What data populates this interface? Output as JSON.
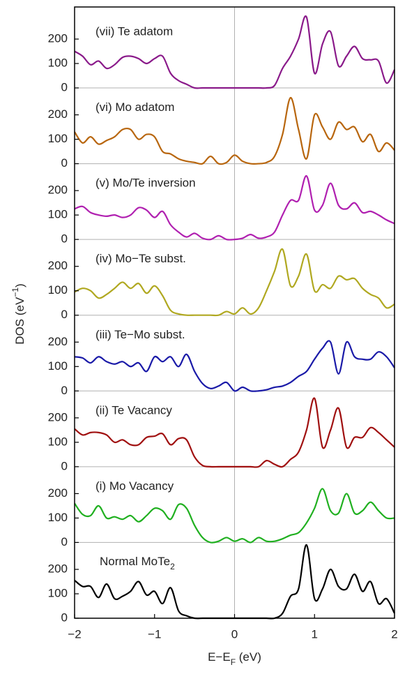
{
  "chart_data": [
    {
      "type": "line",
      "title": "(vii) Te adatom",
      "color": "#8a1a8a",
      "xlim": [
        -2,
        2
      ],
      "ylim": [
        0,
        310
      ],
      "yticks": [
        0,
        100,
        200
      ],
      "ylabel": [
        "DOS (eV",
        "−1",
        ")"
      ],
      "x": [
        -2,
        -1.9,
        -1.8,
        -1.7,
        -1.6,
        -1.5,
        -1.4,
        -1.3,
        -1.2,
        -1.1,
        -1,
        -0.9,
        -0.8,
        -0.7,
        -0.6,
        -0.5,
        -0.4,
        -0.3,
        -0.2,
        -0.1,
        0,
        0.1,
        0.2,
        0.3,
        0.4,
        0.5,
        0.6,
        0.7,
        0.8,
        0.9,
        1,
        1.1,
        1.2,
        1.3,
        1.4,
        1.5,
        1.6,
        1.7,
        1.8,
        1.9,
        2
      ],
      "values": [
        150,
        130,
        95,
        110,
        80,
        95,
        125,
        130,
        120,
        100,
        120,
        130,
        60,
        30,
        15,
        0,
        0,
        0,
        0,
        0,
        0,
        0,
        0,
        0,
        0,
        10,
        80,
        130,
        200,
        290,
        60,
        180,
        230,
        90,
        130,
        170,
        120,
        115,
        110,
        20,
        75
      ]
    },
    {
      "type": "line",
      "title": "(vi) Mo adatom",
      "color": "#b8660e",
      "xlim": [
        -2,
        2
      ],
      "ylim": [
        0,
        310
      ],
      "yticks": [
        0,
        100,
        200
      ],
      "x": [
        -2,
        -1.9,
        -1.8,
        -1.7,
        -1.6,
        -1.5,
        -1.4,
        -1.3,
        -1.2,
        -1.1,
        -1,
        -0.9,
        -0.8,
        -0.7,
        -0.6,
        -0.5,
        -0.4,
        -0.3,
        -0.2,
        -0.1,
        0,
        0.1,
        0.2,
        0.3,
        0.4,
        0.5,
        0.6,
        0.7,
        0.8,
        0.9,
        1,
        1.1,
        1.2,
        1.3,
        1.4,
        1.5,
        1.6,
        1.7,
        1.8,
        1.9,
        2
      ],
      "values": [
        130,
        85,
        110,
        80,
        95,
        110,
        140,
        140,
        100,
        120,
        110,
        50,
        40,
        20,
        10,
        5,
        0,
        30,
        0,
        5,
        35,
        10,
        0,
        0,
        5,
        30,
        120,
        270,
        140,
        20,
        200,
        150,
        100,
        170,
        140,
        150,
        90,
        120,
        50,
        85,
        55
      ]
    },
    {
      "type": "line",
      "title": "(v) Mo/Te inversion",
      "color": "#b020b0",
      "xlim": [
        -2,
        2
      ],
      "ylim": [
        0,
        310
      ],
      "yticks": [
        0,
        100,
        200
      ],
      "x": [
        -2,
        -1.9,
        -1.8,
        -1.7,
        -1.6,
        -1.5,
        -1.4,
        -1.3,
        -1.2,
        -1.1,
        -1,
        -0.9,
        -0.8,
        -0.7,
        -0.6,
        -0.5,
        -0.4,
        -0.3,
        -0.2,
        -0.1,
        0,
        0.1,
        0.2,
        0.3,
        0.4,
        0.5,
        0.6,
        0.7,
        0.8,
        0.9,
        1,
        1.1,
        1.2,
        1.3,
        1.4,
        1.5,
        1.6,
        1.7,
        1.8,
        1.9,
        2
      ],
      "values": [
        125,
        135,
        110,
        100,
        95,
        100,
        90,
        100,
        130,
        120,
        90,
        115,
        60,
        30,
        10,
        25,
        5,
        0,
        15,
        0,
        0,
        5,
        20,
        5,
        10,
        30,
        100,
        160,
        160,
        260,
        120,
        140,
        230,
        140,
        125,
        150,
        110,
        115,
        100,
        80,
        65
      ]
    },
    {
      "type": "line",
      "title": "(iv) Mo−Te subst.",
      "color": "#b0a820",
      "xlim": [
        -2,
        2
      ],
      "ylim": [
        0,
        310
      ],
      "yticks": [
        0,
        100,
        200
      ],
      "x": [
        -2,
        -1.9,
        -1.8,
        -1.7,
        -1.6,
        -1.5,
        -1.4,
        -1.3,
        -1.2,
        -1.1,
        -1,
        -0.9,
        -0.8,
        -0.7,
        -0.6,
        -0.5,
        -0.4,
        -0.3,
        -0.2,
        -0.1,
        0,
        0.1,
        0.2,
        0.3,
        0.4,
        0.5,
        0.6,
        0.7,
        0.8,
        0.9,
        1,
        1.1,
        1.2,
        1.3,
        1.4,
        1.5,
        1.6,
        1.7,
        1.8,
        1.9,
        2
      ],
      "values": [
        95,
        110,
        100,
        70,
        85,
        110,
        135,
        110,
        130,
        90,
        120,
        80,
        20,
        5,
        0,
        0,
        0,
        0,
        0,
        15,
        5,
        30,
        5,
        30,
        100,
        180,
        270,
        120,
        160,
        250,
        100,
        125,
        110,
        160,
        145,
        150,
        110,
        85,
        70,
        30,
        45
      ]
    },
    {
      "type": "line",
      "title": "(iii) Te−Mo subst.",
      "color": "#1a1aa8",
      "xlim": [
        -2,
        2
      ],
      "ylim": [
        0,
        310
      ],
      "yticks": [
        0,
        100,
        200
      ],
      "x": [
        -2,
        -1.9,
        -1.8,
        -1.7,
        -1.6,
        -1.5,
        -1.4,
        -1.3,
        -1.2,
        -1.1,
        -1,
        -0.9,
        -0.8,
        -0.7,
        -0.6,
        -0.5,
        -0.4,
        -0.3,
        -0.2,
        -0.1,
        0,
        0.1,
        0.2,
        0.3,
        0.4,
        0.5,
        0.6,
        0.7,
        0.8,
        0.9,
        1,
        1.1,
        1.2,
        1.3,
        1.4,
        1.5,
        1.6,
        1.7,
        1.8,
        1.9,
        2
      ],
      "values": [
        140,
        135,
        115,
        140,
        120,
        110,
        120,
        100,
        115,
        80,
        140,
        120,
        140,
        100,
        150,
        80,
        30,
        10,
        20,
        35,
        0,
        15,
        0,
        0,
        5,
        15,
        20,
        35,
        60,
        80,
        130,
        175,
        200,
        70,
        200,
        140,
        130,
        130,
        160,
        140,
        95
      ]
    },
    {
      "type": "line",
      "title": "(ii) Te Vacancy",
      "color": "#a01010",
      "xlim": [
        -2,
        2
      ],
      "ylim": [
        0,
        310
      ],
      "yticks": [
        0,
        100,
        200
      ],
      "x": [
        -2,
        -1.9,
        -1.8,
        -1.7,
        -1.6,
        -1.5,
        -1.4,
        -1.3,
        -1.2,
        -1.1,
        -1,
        -0.9,
        -0.8,
        -0.7,
        -0.6,
        -0.5,
        -0.4,
        -0.3,
        -0.2,
        -0.1,
        0,
        0.1,
        0.2,
        0.3,
        0.4,
        0.5,
        0.6,
        0.7,
        0.8,
        0.9,
        1,
        1.1,
        1.2,
        1.3,
        1.4,
        1.5,
        1.6,
        1.7,
        1.8,
        1.9,
        2
      ],
      "values": [
        155,
        130,
        140,
        140,
        130,
        100,
        110,
        90,
        90,
        120,
        125,
        135,
        90,
        115,
        110,
        40,
        5,
        0,
        0,
        0,
        0,
        0,
        0,
        0,
        25,
        10,
        0,
        30,
        60,
        150,
        280,
        80,
        150,
        240,
        80,
        120,
        120,
        160,
        140,
        110,
        80
      ]
    },
    {
      "type": "line",
      "title": "(i) Mo Vacancy",
      "color": "#20b020",
      "xlim": [
        -2,
        2
      ],
      "ylim": [
        0,
        310
      ],
      "yticks": [
        0,
        100,
        200
      ],
      "x": [
        -2,
        -1.9,
        -1.8,
        -1.7,
        -1.6,
        -1.5,
        -1.4,
        -1.3,
        -1.2,
        -1.1,
        -1,
        -0.9,
        -0.8,
        -0.7,
        -0.6,
        -0.5,
        -0.4,
        -0.3,
        -0.2,
        -0.1,
        0,
        0.1,
        0.2,
        0.3,
        0.4,
        0.5,
        0.6,
        0.7,
        0.8,
        0.9,
        1,
        1.1,
        1.2,
        1.3,
        1.4,
        1.5,
        1.6,
        1.7,
        1.8,
        1.9,
        2
      ],
      "values": [
        160,
        115,
        110,
        150,
        100,
        105,
        95,
        110,
        85,
        110,
        140,
        130,
        95,
        155,
        140,
        70,
        20,
        0,
        5,
        20,
        5,
        15,
        0,
        20,
        5,
        5,
        15,
        30,
        40,
        80,
        140,
        220,
        130,
        120,
        200,
        120,
        130,
        165,
        130,
        100,
        100
      ]
    },
    {
      "type": "line",
      "title": [
        "Normal MoTe",
        "2"
      ],
      "color": "#000000",
      "xlim": [
        -2,
        2
      ],
      "ylim": [
        0,
        310
      ],
      "yticks": [
        0,
        100,
        200
      ],
      "xticks": [
        {
          "value": -2,
          "label": "−2"
        },
        {
          "value": -1,
          "label": "−1"
        },
        0,
        1,
        2
      ],
      "vline": 0,
      "xlabel": [
        "E−E",
        "F",
        " (eV)"
      ],
      "x": [
        -2,
        -1.9,
        -1.8,
        -1.7,
        -1.6,
        -1.5,
        -1.4,
        -1.3,
        -1.2,
        -1.1,
        -1,
        -0.9,
        -0.8,
        -0.7,
        -0.6,
        -0.5,
        -0.4,
        -0.3,
        -0.2,
        -0.1,
        0,
        0.1,
        0.2,
        0.3,
        0.4,
        0.5,
        0.6,
        0.7,
        0.8,
        0.9,
        1,
        1.1,
        1.2,
        1.3,
        1.4,
        1.5,
        1.6,
        1.7,
        1.8,
        1.9,
        2
      ],
      "values": [
        155,
        130,
        130,
        85,
        140,
        80,
        90,
        110,
        150,
        95,
        110,
        60,
        125,
        30,
        10,
        0,
        0,
        0,
        0,
        0,
        0,
        0,
        0,
        0,
        0,
        0,
        20,
        90,
        120,
        300,
        80,
        120,
        200,
        130,
        120,
        180,
        110,
        150,
        60,
        80,
        20
      ]
    }
  ]
}
